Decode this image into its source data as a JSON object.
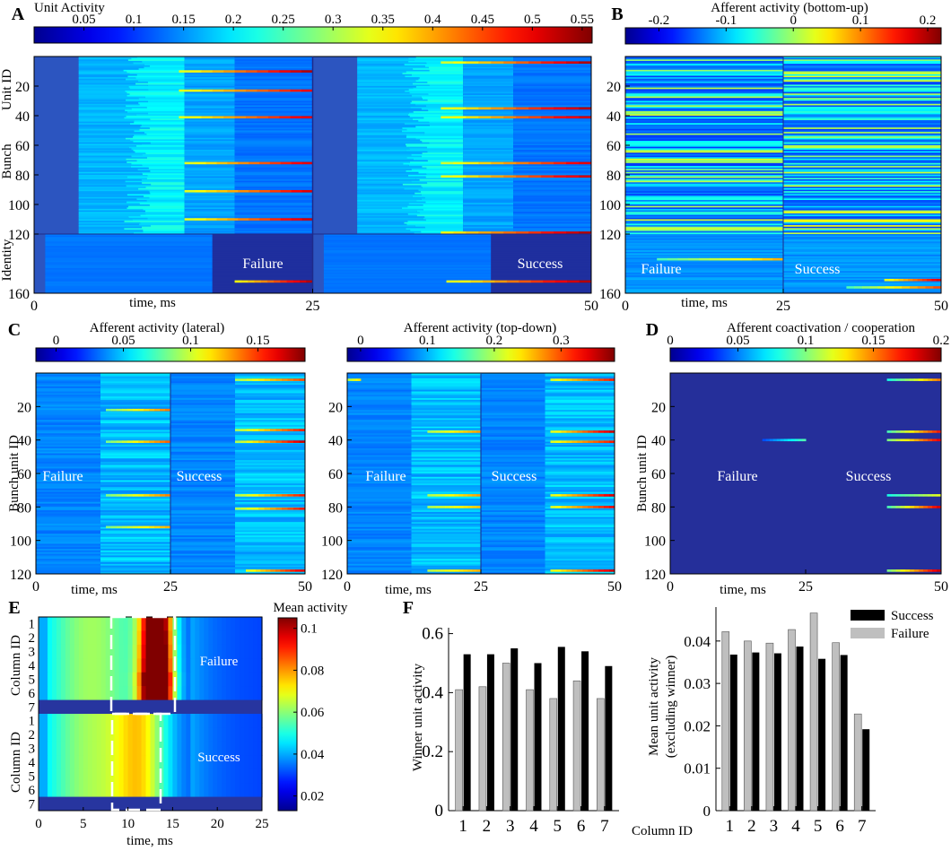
{
  "panel_labels": [
    "A",
    "B",
    "C",
    "D",
    "E",
    "F"
  ],
  "colors": {
    "heat_lo": "#1f2a9a",
    "heat_base": "#2f56c0",
    "bar_failure": "#bfbfbf",
    "bar_success": "#000000"
  },
  "overlay": {
    "failure": "Failure",
    "success": "Success"
  },
  "axis_text": {
    "time_ms": "time, ms",
    "unit_id": "Unit ID",
    "bunch": "Bunch",
    "identity": "Identity",
    "bunch_unit_id": "Bunch unit ID",
    "column_id": "Column ID"
  },
  "chart_data": [
    {
      "id": "A",
      "type": "heatmap",
      "title": "Unit Activity",
      "colorbar_ticks": [
        "0.05",
        "0.1",
        "0.15",
        "0.2",
        "0.25",
        "0.3",
        "0.35",
        "0.4",
        "0.45",
        "0.5",
        "0.55"
      ],
      "colorbar_range": [
        0.0,
        0.56
      ],
      "y_ticks": [
        "20",
        "40",
        "60",
        "80",
        "100",
        "120",
        "160"
      ],
      "x_ticks": [
        "0",
        "25",
        "50"
      ],
      "xlabel": "time, ms",
      "ylabel": "Unit ID",
      "ylim": [
        0,
        160
      ],
      "xlim": [
        0,
        50
      ],
      "groups": [
        "Bunch",
        "Identity"
      ]
    },
    {
      "id": "B",
      "type": "heatmap",
      "title": "Afferent activity (bottom-up)",
      "colorbar_ticks": [
        "-0.2",
        "-0.1",
        "0",
        "0.1",
        "0.2"
      ],
      "colorbar_range": [
        -0.25,
        0.22
      ],
      "y_ticks": [
        "20",
        "40",
        "60",
        "80",
        "100",
        "120",
        "160"
      ],
      "x_ticks": [
        "0",
        "25",
        "50"
      ],
      "xlabel": "time, ms",
      "ylim": [
        0,
        160
      ],
      "xlim": [
        0,
        50
      ]
    },
    {
      "id": "C1",
      "type": "heatmap",
      "title": "Afferent activity (lateral)",
      "colorbar_ticks": [
        "0",
        "0.05",
        "0.1",
        "0.15"
      ],
      "colorbar_range": [
        -0.015,
        0.185
      ],
      "y_ticks": [
        "20",
        "40",
        "60",
        "80",
        "100",
        "120"
      ],
      "x_ticks": [
        "0",
        "25",
        "50"
      ],
      "xlabel": "time, ms",
      "ylabel": "Bunch unit ID",
      "ylim": [
        0,
        120
      ],
      "xlim": [
        0,
        50
      ]
    },
    {
      "id": "C2",
      "type": "heatmap",
      "title": "Afferent activity (top-down)",
      "colorbar_ticks": [
        "0",
        "0.1",
        "0.2",
        "0.3"
      ],
      "colorbar_range": [
        -0.02,
        0.38
      ],
      "y_ticks": [
        "20",
        "40",
        "60",
        "80",
        "100",
        "120"
      ],
      "x_ticks": [
        "0",
        "25",
        "50"
      ],
      "xlabel": "time, ms",
      "ylim": [
        0,
        120
      ],
      "xlim": [
        0,
        50
      ]
    },
    {
      "id": "D",
      "type": "heatmap",
      "title": "Afferent coactivation / cooperation",
      "colorbar_ticks": [
        "0",
        "0.05",
        "0.1",
        "0.15",
        "0.2"
      ],
      "colorbar_range": [
        0.0,
        0.2
      ],
      "y_ticks": [
        "20",
        "40",
        "60",
        "80",
        "100",
        "120"
      ],
      "x_ticks": [
        "0",
        "25",
        "50"
      ],
      "xlabel": "time, ms",
      "ylabel": "Bunch unit ID",
      "ylim": [
        0,
        120
      ],
      "xlim": [
        0,
        50
      ]
    },
    {
      "id": "E",
      "type": "heatmap",
      "title": "Mean activity",
      "colorbar_ticks": [
        "0.1",
        "0.08",
        "0.06",
        "0.04",
        "0.02"
      ],
      "colorbar_range": [
        0.013,
        0.105
      ],
      "row_labels": [
        "1",
        "2",
        "3",
        "4",
        "5",
        "6",
        "7"
      ],
      "x_ticks": [
        "0",
        "5",
        "10",
        "15",
        "20",
        "25"
      ],
      "xlabel": "time, ms",
      "ylabel": "Column ID",
      "xlim": [
        0,
        25
      ]
    },
    {
      "id": "F1",
      "type": "bar",
      "categories": [
        "1",
        "2",
        "3",
        "4",
        "5",
        "6",
        "7"
      ],
      "series": [
        {
          "name": "Failure",
          "values": [
            0.41,
            0.42,
            0.5,
            0.41,
            0.38,
            0.44,
            0.38
          ]
        },
        {
          "name": "Success",
          "values": [
            0.53,
            0.53,
            0.55,
            0.5,
            0.555,
            0.54,
            0.49
          ]
        }
      ],
      "y_ticks": [
        "0",
        "0.2",
        "0.4",
        "0.6"
      ],
      "ylabel": "Winner unit activity",
      "ylim": [
        0,
        0.62
      ]
    },
    {
      "id": "F2",
      "type": "bar",
      "categories": [
        "1",
        "2",
        "3",
        "4",
        "5",
        "6",
        "7"
      ],
      "series": [
        {
          "name": "Failure",
          "values": [
            0.0422,
            0.04,
            0.0395,
            0.0427,
            0.0466,
            0.0396,
            0.0228
          ]
        },
        {
          "name": "Success",
          "values": [
            0.0368,
            0.0373,
            0.0371,
            0.0387,
            0.0358,
            0.0367,
            0.0192
          ]
        }
      ],
      "y_ticks": [
        "0",
        "0.01",
        "0.02",
        "0.03",
        "0.04"
      ],
      "ylabel": "Mean unit activity",
      "ylabel2": "(excluding winner)",
      "xlabel": "Column ID",
      "ylim": [
        0,
        0.048
      ],
      "legend": [
        "Success",
        "Failure"
      ]
    }
  ]
}
